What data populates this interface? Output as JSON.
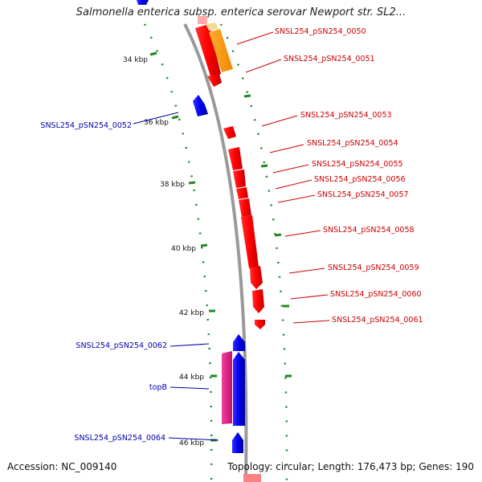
{
  "title": "Salmonella enterica subsp. enterica serovar Newport str. SL2...",
  "footer": {
    "accession": "Accession: NC_009140",
    "summary": "Topology: circular; Length: 176,473 bp; Genes: 190"
  },
  "ticks": [
    "34 kbp",
    "36 kbp",
    "38 kbp",
    "40 kbp",
    "42 kbp",
    "44 kbp",
    "46 kbp"
  ],
  "genes_reverse": [
    "SNSL254_pSN254_0050",
    "SNSL254_pSN254_0051",
    "SNSL254_pSN254_0053",
    "SNSL254_pSN254_0054",
    "SNSL254_pSN254_0055",
    "SNSL254_pSN254_0056",
    "SNSL254_pSN254_0057",
    "SNSL254_pSN254_0058",
    "SNSL254_pSN254_0059",
    "SNSL254_pSN254_0060",
    "SNSL254_pSN254_0061"
  ],
  "genes_forward": [
    "SNSL254_pSN254_0052",
    "SNSL254_pSN254_0062",
    "topB",
    "SNSL254_pSN254_0064"
  ],
  "colors": {
    "reverse_gene": "#ff0000",
    "forward_gene": "#0000ee",
    "orange_gene": "#ff9900",
    "pink_feature": "#e8208a",
    "backbone": "#999999",
    "dots": "#228822"
  }
}
